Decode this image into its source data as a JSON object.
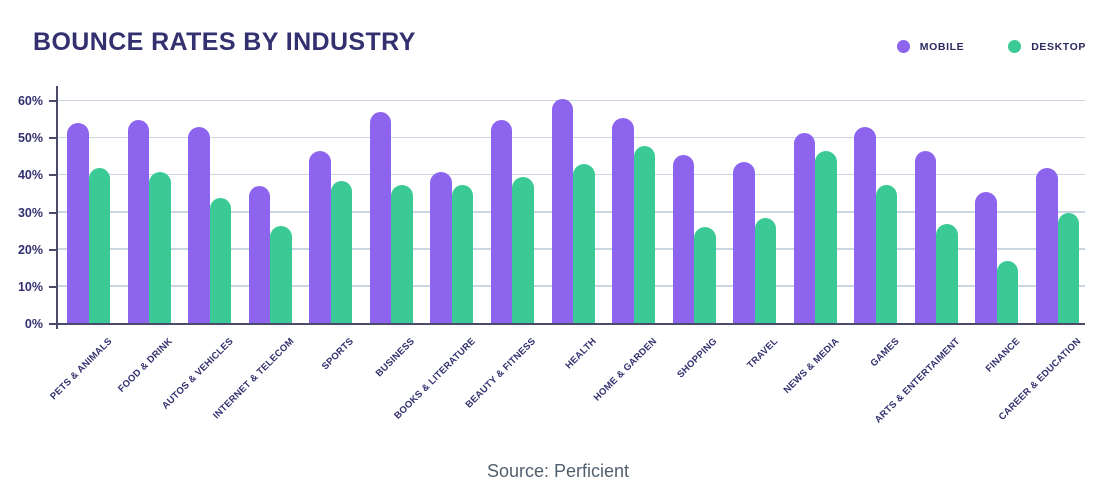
{
  "title": "BOUNCE RATES BY INDUSTRY",
  "source": "Source: Perficient",
  "colors": {
    "mobile": "#8c64ee",
    "desktop": "#3bca96",
    "text_navy": "#32306e",
    "gridline": "#ccd6e0",
    "axis": "#4b4a6a",
    "source_text": "#51606f"
  },
  "chart_data": {
    "type": "bar",
    "title": "BOUNCE RATES BY INDUSTRY",
    "units": "%",
    "categories": [
      "PETS & ANIMALS",
      "FOOD & DRINK",
      "AUTOS & VEHICLES",
      "INTERNET & TELECOM",
      "SPORTS",
      "BUSINESS",
      "BOOKS & LITERATURE",
      "BEAUTY & FITNESS",
      "HEALTH",
      "HOME & GARDEN",
      "SHOPPING",
      "TRAVEL",
      "NEWS & MEDIA",
      "GAMES",
      "ARTS & ENTERTAIMENT",
      "FINANCE",
      "CAREER & EDUCATION"
    ],
    "series": [
      {
        "name": "MOBILE",
        "color": "#8c64ee",
        "values": [
          54,
          55,
          53,
          37,
          46.5,
          57,
          41,
          55,
          60.5,
          55.5,
          45.5,
          43.5,
          51.5,
          53,
          46.5,
          35.5,
          42
        ]
      },
      {
        "name": "DESKTOP",
        "color": "#3bca96",
        "values": [
          42,
          41,
          34,
          26.5,
          38.5,
          37.5,
          37.5,
          39.5,
          43,
          48,
          26,
          28.5,
          46.5,
          37.5,
          27,
          17,
          30
        ]
      }
    ],
    "yticks": [
      "0%",
      "10%",
      "20%",
      "30%",
      "40%",
      "50%",
      "60%"
    ],
    "ylim": [
      0,
      60
    ],
    "grid": true,
    "legend_position": "top-right",
    "xlabel": "",
    "ylabel": ""
  }
}
